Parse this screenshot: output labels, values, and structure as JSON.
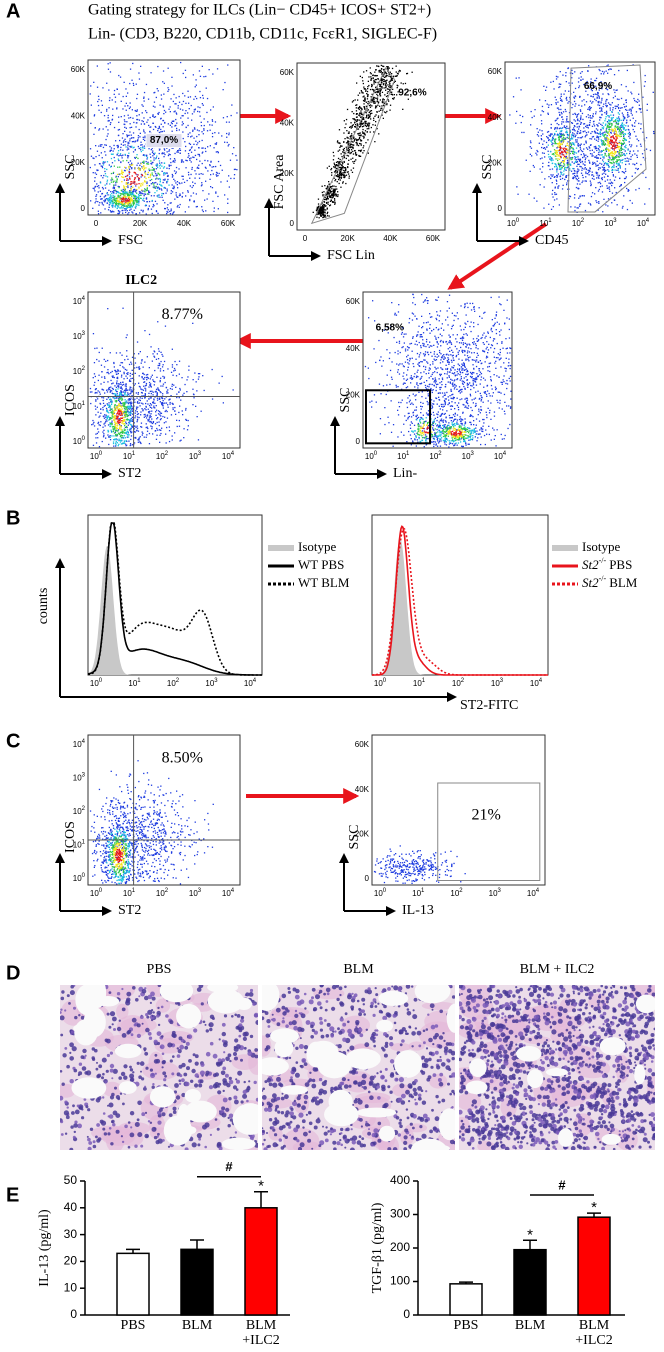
{
  "panel_letters": {
    "a": "A",
    "b": "B",
    "c": "C",
    "d": "D",
    "e": "E"
  },
  "gating_title": [
    "Gating strategy for ILCs (Lin− CD45+ ICOS+ ST2+)",
    "Lin- (CD3, B220, CD11b, CD11c, FcεR1, SIGLEC-F)"
  ],
  "flow_plots": {
    "a1": {
      "y_label": "SSC",
      "x_label": "FSC",
      "gate_label": "87,0%",
      "yticks": [
        "0",
        "20K",
        "40K",
        "60K"
      ],
      "xticks": [
        "0",
        "20K",
        "40K",
        "60K"
      ]
    },
    "a2": {
      "y_label": "FSC Area",
      "x_label": "FSC Lin",
      "gate_label": "92,6%",
      "yticks": [
        "0",
        "20K",
        "40K",
        "60K"
      ],
      "xticks": [
        "0",
        "20K",
        "40K",
        "60K"
      ]
    },
    "a3": {
      "y_label": "SSC",
      "x_label": "CD45",
      "gate_label": "66,9%",
      "yticks": [
        "0",
        "20K",
        "40K",
        "60K"
      ],
      "xticks": [
        {
          "base": "10",
          "exp": "0"
        },
        {
          "base": "10",
          "exp": "1"
        },
        {
          "base": "10",
          "exp": "2"
        },
        {
          "base": "10",
          "exp": "3"
        },
        {
          "base": "10",
          "exp": "4"
        }
      ]
    },
    "a4": {
      "title": "ILC2",
      "y_label": "ICOS",
      "x_label": "ST2",
      "gate_label": "8.77%",
      "yticks": [
        {
          "base": "10",
          "exp": "0"
        },
        {
          "base": "10",
          "exp": "1"
        },
        {
          "base": "10",
          "exp": "2"
        },
        {
          "base": "10",
          "exp": "3"
        },
        {
          "base": "10",
          "exp": "4"
        }
      ],
      "xticks": [
        {
          "base": "10",
          "exp": "0"
        },
        {
          "base": "10",
          "exp": "1"
        },
        {
          "base": "10",
          "exp": "2"
        },
        {
          "base": "10",
          "exp": "3"
        },
        {
          "base": "10",
          "exp": "4"
        }
      ]
    },
    "a5": {
      "y_label": "SSC",
      "x_label": "Lin-",
      "gate_label": "6,58%",
      "yticks": [
        "0",
        "20K",
        "40K",
        "60K"
      ],
      "xticks": [
        {
          "base": "10",
          "exp": "0"
        },
        {
          "base": "10",
          "exp": "1"
        },
        {
          "base": "10",
          "exp": "2"
        },
        {
          "base": "10",
          "exp": "3"
        },
        {
          "base": "10",
          "exp": "4"
        }
      ]
    },
    "c1": {
      "y_label": "ICOS",
      "x_label": "ST2",
      "gate_label": "8.50%",
      "yticks": [
        {
          "base": "10",
          "exp": "0"
        },
        {
          "base": "10",
          "exp": "1"
        },
        {
          "base": "10",
          "exp": "2"
        },
        {
          "base": "10",
          "exp": "3"
        },
        {
          "base": "10",
          "exp": "4"
        }
      ],
      "xticks": [
        {
          "base": "10",
          "exp": "0"
        },
        {
          "base": "10",
          "exp": "1"
        },
        {
          "base": "10",
          "exp": "2"
        },
        {
          "base": "10",
          "exp": "3"
        },
        {
          "base": "10",
          "exp": "4"
        }
      ]
    },
    "c2": {
      "y_label": "SSC",
      "x_label": "IL-13",
      "gate_label": "21%",
      "yticks": [
        "0",
        "20K",
        "40K",
        "60K"
      ],
      "xticks": [
        {
          "base": "10",
          "exp": "0"
        },
        {
          "base": "10",
          "exp": "1"
        },
        {
          "base": "10",
          "exp": "2"
        },
        {
          "base": "10",
          "exp": "3"
        },
        {
          "base": "10",
          "exp": "4"
        }
      ]
    }
  },
  "panel_b": {
    "y_label": "counts",
    "x_label": "ST2-FITC",
    "histograms": {
      "b1": {
        "xticks": [
          {
            "base": "10",
            "exp": "0"
          },
          {
            "base": "10",
            "exp": "1"
          },
          {
            "base": "10",
            "exp": "2"
          },
          {
            "base": "10",
            "exp": "3"
          },
          {
            "base": "10",
            "exp": "4"
          }
        ],
        "legend": [
          {
            "text": "Isotype"
          },
          {
            "text": "WT PBS"
          },
          {
            "text": "WT BLM"
          }
        ]
      },
      "b2": {
        "xticks": [
          {
            "base": "10",
            "exp": "0"
          },
          {
            "base": "10",
            "exp": "1"
          },
          {
            "base": "10",
            "exp": "2"
          },
          {
            "base": "10",
            "exp": "3"
          },
          {
            "base": "10",
            "exp": "4"
          }
        ],
        "legend": [
          {
            "text": "Isotype"
          },
          {
            "gene": "St2",
            "sup": "-/-",
            "text": "PBS"
          },
          {
            "gene": "St2",
            "sup": "-/-",
            "text": "BLM"
          }
        ]
      }
    }
  },
  "panel_d": {
    "titles": [
      "PBS",
      "BLM",
      "BLM + ILC2"
    ]
  },
  "chart_data": [
    {
      "type": "bar",
      "y_label": "IL-13 (pg/ml)",
      "categories": [
        "PBS",
        "BLM",
        "BLM +ILC2"
      ],
      "values": [
        23,
        24.5,
        40
      ],
      "errors": [
        1.5,
        3.5,
        6
      ],
      "colors": [
        "#ffffff",
        "#000000",
        "#ff0000"
      ],
      "ylim": [
        0,
        50
      ],
      "yticks": [
        0,
        10,
        20,
        30,
        40,
        50
      ],
      "annotations": [
        {
          "text": "*",
          "at": "BLM +ILC2"
        },
        {
          "text": "#",
          "from": "BLM",
          "to": "BLM +ILC2"
        }
      ]
    },
    {
      "type": "bar",
      "y_label": "TGF-β1 (pg/ml)",
      "categories": [
        "PBS",
        "BLM",
        "BLM +ILC2"
      ],
      "values": [
        93,
        195,
        292
      ],
      "errors": [
        5,
        28,
        12
      ],
      "colors": [
        "#ffffff",
        "#000000",
        "#ff0000"
      ],
      "ylim": [
        0,
        400
      ],
      "yticks": [
        0,
        100,
        200,
        300,
        400
      ],
      "annotations": [
        {
          "text": "*",
          "at": "BLM"
        },
        {
          "text": "*",
          "at": "BLM +ILC2"
        },
        {
          "text": "#",
          "from": "BLM",
          "to": "BLM +ILC2"
        }
      ]
    }
  ]
}
